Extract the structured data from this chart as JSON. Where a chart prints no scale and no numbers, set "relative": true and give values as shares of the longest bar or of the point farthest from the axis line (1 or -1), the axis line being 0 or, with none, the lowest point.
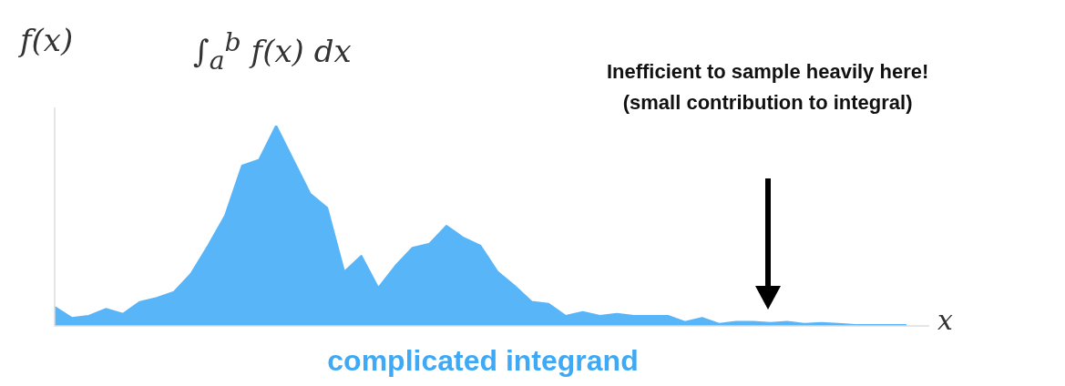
{
  "chart_data": {
    "type": "area",
    "relative": true,
    "marker": "none",
    "ylabel": "f(x)",
    "xlabel": "x",
    "categories": [
      null,
      null,
      null,
      null,
      null,
      null,
      null,
      null,
      null,
      null,
      null,
      null,
      null,
      null,
      null,
      null,
      null,
      null,
      null,
      null,
      null,
      null,
      null,
      null,
      null,
      null,
      null,
      null,
      null,
      null,
      null,
      null,
      null,
      null,
      null,
      null,
      null,
      null,
      null,
      null,
      null,
      null,
      null,
      null,
      null,
      null,
      null,
      null,
      null,
      null,
      null
    ],
    "series": [
      {
        "color": "#58b5f8",
        "values": [
          0.095,
          0.04,
          0.05,
          0.085,
          0.06,
          0.12,
          0.14,
          0.17,
          0.26,
          0.4,
          0.55,
          0.8,
          0.83,
          1,
          0.83,
          0.66,
          0.59,
          0.27,
          0.35,
          0.19,
          0.3,
          0.39,
          0.41,
          0.5,
          0.44,
          0.4,
          0.27,
          0.2,
          0.12,
          0.11,
          0.05,
          0.07,
          0.05,
          0.06,
          0.05,
          0.05,
          0.05,
          0.02,
          0.04,
          0.01,
          0.02,
          0.02,
          0.015,
          0.02,
          0.01,
          0.015,
          0.01,
          0.005,
          0.005,
          0.005,
          0.005
        ]
      }
    ],
    "annotations": [
      "∫$_{a}$$^{b}$ f(x) dx",
      "Inefficient to sample heavily here!\n(small contribution to integral)",
      "complicated integrand"
    ]
  }
}
